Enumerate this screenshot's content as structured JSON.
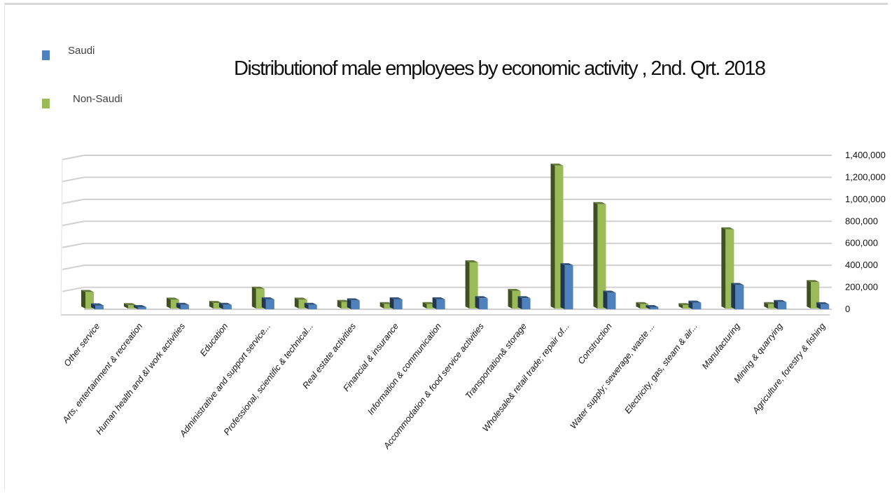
{
  "chart_data": {
    "type": "bar",
    "title": "Distributionof male employees by economic activity , 2nd. Qrt. 2018",
    "xlabel": "",
    "ylabel": "",
    "ylim": [
      0,
      1400000
    ],
    "yticks": [
      "1,400,000",
      "1,200,000",
      "1,000,000",
      "800,000",
      "600,000",
      "400,000",
      "200,000",
      "0"
    ],
    "grid": true,
    "three_d": true,
    "legend_position": "top-left",
    "categories": [
      "Other service",
      "Arts, entertainment & recreation",
      "Human health and &l work activities",
      "Education",
      "Administrative and support service...",
      "Professional, scientific & technical...",
      "Real estate activities",
      "Financial & insurance",
      "Information & communication",
      "Accommodation & food service activities",
      "Transportation& storage",
      "Wholesale& retail trade; repair of...",
      "Construction",
      "Water supply; sewerage, waste ...",
      "Electricity, gas, steam & air...",
      "Manufacturing",
      "Mining & quarrying",
      "Agriculture, forestry & fishing"
    ],
    "series": [
      {
        "name": "Non-Saudi",
        "color": "#9bbb59",
        "values": [
          150000,
          30000,
          80000,
          50000,
          180000,
          80000,
          60000,
          40000,
          40000,
          420000,
          160000,
          1300000,
          950000,
          40000,
          30000,
          720000,
          40000,
          240000
        ]
      },
      {
        "name": "Saudi",
        "color": "#4f81bd",
        "values": [
          35000,
          10000,
          40000,
          40000,
          90000,
          40000,
          80000,
          90000,
          90000,
          100000,
          100000,
          400000,
          150000,
          15000,
          60000,
          220000,
          65000,
          45000
        ]
      }
    ]
  },
  "legend": {
    "saudi": "Saudi",
    "non_saudi": "Non-Saudi"
  }
}
